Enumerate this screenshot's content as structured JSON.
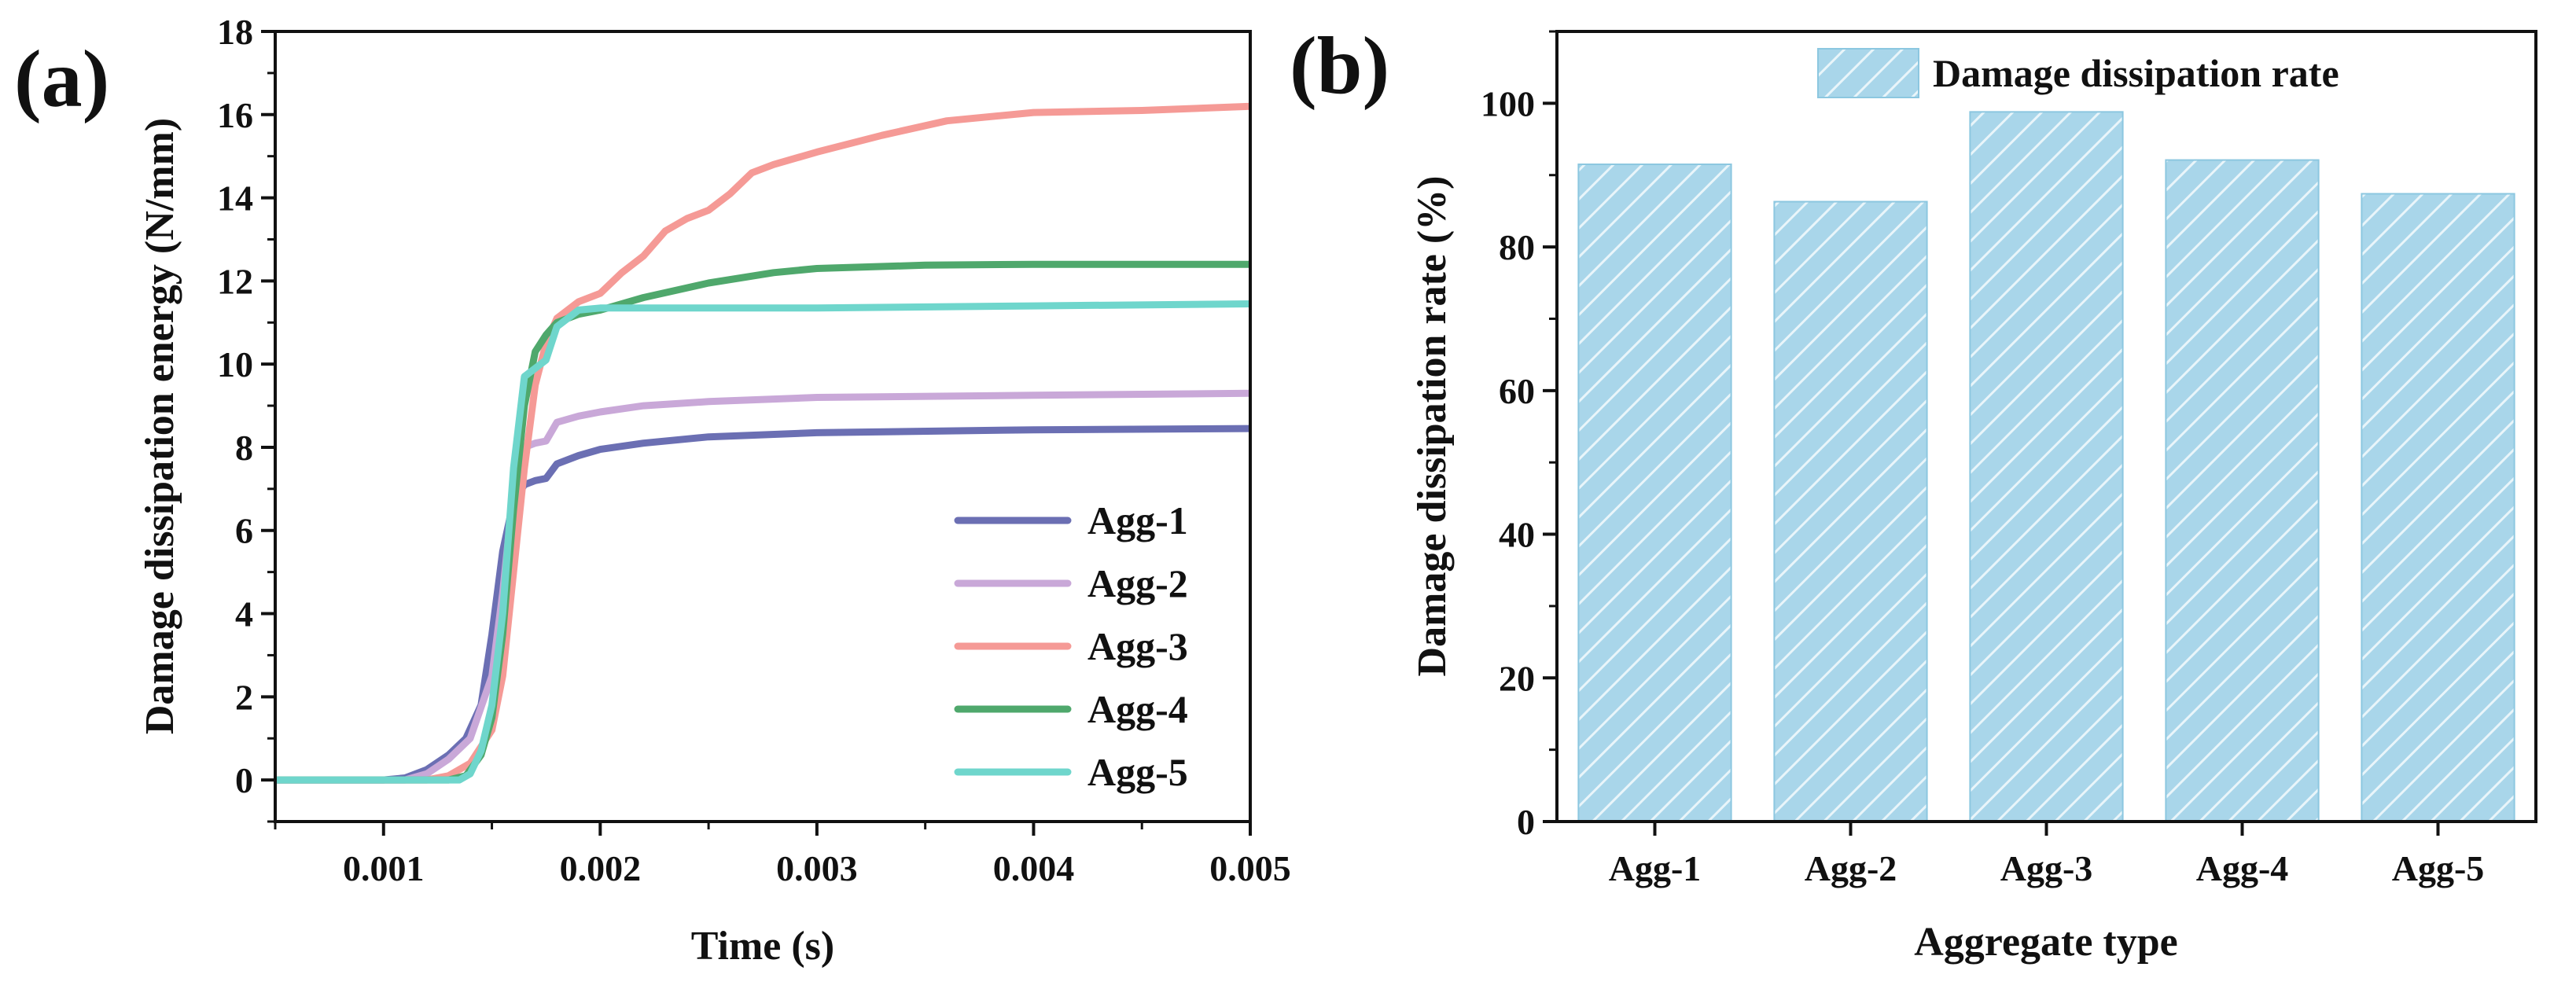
{
  "chart_data": [
    {
      "panel_label": "(a)",
      "type": "line",
      "xlabel": "Time (s)",
      "ylabel": "Damage dissipation energy (N/mm)",
      "xlim": [
        0.0005,
        0.005
      ],
      "ylim": [
        -1,
        18
      ],
      "xticks": [
        "0.001",
        "0.002",
        "0.003",
        "0.004",
        "0.005"
      ],
      "xtick_values": [
        0.001,
        0.002,
        0.003,
        0.004,
        0.005
      ],
      "yticks": [
        "0",
        "2",
        "4",
        "6",
        "8",
        "10",
        "12",
        "14",
        "16",
        "18"
      ],
      "ytick_values": [
        0,
        2,
        4,
        6,
        8,
        10,
        12,
        14,
        16,
        18
      ],
      "legend_position": "bottom-right",
      "series": [
        {
          "name": "Agg-1",
          "color": "#6b6fb3",
          "points": [
            [
              0.0005,
              0
            ],
            [
              0.001,
              0
            ],
            [
              0.0011,
              0.05
            ],
            [
              0.0012,
              0.25
            ],
            [
              0.0013,
              0.6
            ],
            [
              0.00138,
              1.0
            ],
            [
              0.00145,
              1.8
            ],
            [
              0.0015,
              3.5
            ],
            [
              0.00155,
              5.5
            ],
            [
              0.0016,
              6.7
            ],
            [
              0.00165,
              7.1
            ],
            [
              0.0017,
              7.2
            ],
            [
              0.00175,
              7.25
            ],
            [
              0.0018,
              7.6
            ],
            [
              0.0019,
              7.8
            ],
            [
              0.002,
              7.95
            ],
            [
              0.0022,
              8.1
            ],
            [
              0.0025,
              8.25
            ],
            [
              0.003,
              8.35
            ],
            [
              0.004,
              8.42
            ],
            [
              0.005,
              8.45
            ]
          ]
        },
        {
          "name": "Agg-2",
          "color": "#c9a8d8",
          "points": [
            [
              0.0005,
              0
            ],
            [
              0.0011,
              0
            ],
            [
              0.0012,
              0.15
            ],
            [
              0.0013,
              0.5
            ],
            [
              0.0014,
              1.0
            ],
            [
              0.0015,
              2.5
            ],
            [
              0.00155,
              4.5
            ],
            [
              0.0016,
              7.0
            ],
            [
              0.00165,
              8.0
            ],
            [
              0.0017,
              8.1
            ],
            [
              0.00175,
              8.15
            ],
            [
              0.0018,
              8.6
            ],
            [
              0.0019,
              8.75
            ],
            [
              0.002,
              8.85
            ],
            [
              0.0022,
              9.0
            ],
            [
              0.0025,
              9.1
            ],
            [
              0.003,
              9.2
            ],
            [
              0.004,
              9.25
            ],
            [
              0.005,
              9.3
            ]
          ]
        },
        {
          "name": "Agg-3",
          "color": "#f59a96",
          "points": [
            [
              0.0005,
              0
            ],
            [
              0.0012,
              0
            ],
            [
              0.0013,
              0.1
            ],
            [
              0.0014,
              0.4
            ],
            [
              0.0015,
              1.2
            ],
            [
              0.00155,
              2.5
            ],
            [
              0.0016,
              5.0
            ],
            [
              0.00165,
              7.5
            ],
            [
              0.0017,
              9.5
            ],
            [
              0.00175,
              10.5
            ],
            [
              0.0018,
              11.1
            ],
            [
              0.0019,
              11.5
            ],
            [
              0.002,
              11.7
            ],
            [
              0.0021,
              12.2
            ],
            [
              0.0022,
              12.6
            ],
            [
              0.0023,
              13.2
            ],
            [
              0.0024,
              13.5
            ],
            [
              0.0025,
              13.7
            ],
            [
              0.0026,
              14.1
            ],
            [
              0.0027,
              14.6
            ],
            [
              0.0028,
              14.8
            ],
            [
              0.003,
              15.1
            ],
            [
              0.0033,
              15.5
            ],
            [
              0.0036,
              15.85
            ],
            [
              0.004,
              16.05
            ],
            [
              0.0045,
              16.1
            ],
            [
              0.005,
              16.2
            ]
          ]
        },
        {
          "name": "Agg-4",
          "color": "#4fa86c",
          "points": [
            [
              0.0005,
              0
            ],
            [
              0.0013,
              0
            ],
            [
              0.00138,
              0.1
            ],
            [
              0.00145,
              0.6
            ],
            [
              0.0015,
              1.5
            ],
            [
              0.00155,
              3.5
            ],
            [
              0.0016,
              6.5
            ],
            [
              0.00165,
              9.0
            ],
            [
              0.0017,
              10.3
            ],
            [
              0.00175,
              10.7
            ],
            [
              0.0018,
              11.0
            ],
            [
              0.0019,
              11.2
            ],
            [
              0.002,
              11.3
            ],
            [
              0.0022,
              11.6
            ],
            [
              0.0025,
              11.95
            ],
            [
              0.0028,
              12.2
            ],
            [
              0.003,
              12.3
            ],
            [
              0.0035,
              12.38
            ],
            [
              0.004,
              12.4
            ],
            [
              0.005,
              12.4
            ]
          ]
        },
        {
          "name": "Agg-5",
          "color": "#6fd6cc",
          "points": [
            [
              0.0005,
              0
            ],
            [
              0.00135,
              0
            ],
            [
              0.0014,
              0.15
            ],
            [
              0.00145,
              0.7
            ],
            [
              0.0015,
              1.8
            ],
            [
              0.00155,
              4.0
            ],
            [
              0.0016,
              7.5
            ],
            [
              0.00165,
              9.7
            ],
            [
              0.0017,
              9.9
            ],
            [
              0.00175,
              10.1
            ],
            [
              0.0018,
              10.9
            ],
            [
              0.0019,
              11.3
            ],
            [
              0.002,
              11.35
            ],
            [
              0.0025,
              11.35
            ],
            [
              0.003,
              11.35
            ],
            [
              0.004,
              11.4
            ],
            [
              0.005,
              11.45
            ]
          ]
        }
      ]
    },
    {
      "panel_label": "(b)",
      "type": "bar",
      "xlabel": "Aggregate type",
      "ylabel": "Damage dissipation rate (%)",
      "ylim": [
        0,
        110
      ],
      "yticks": [
        "0",
        "20",
        "40",
        "60",
        "80",
        "100"
      ],
      "ytick_values": [
        0,
        20,
        40,
        60,
        80,
        100
      ],
      "categories": [
        "Agg-1",
        "Agg-2",
        "Agg-3",
        "Agg-4",
        "Agg-5"
      ],
      "values": [
        91.5,
        86.3,
        98.8,
        92.1,
        87.4
      ],
      "legend": [
        "Damage dissipation rate"
      ],
      "legend_position": "top-right",
      "bar_color": "#a9d6ea",
      "bar_edge_color": "#8cc7e0",
      "hatch_color": "#ffffff"
    }
  ]
}
